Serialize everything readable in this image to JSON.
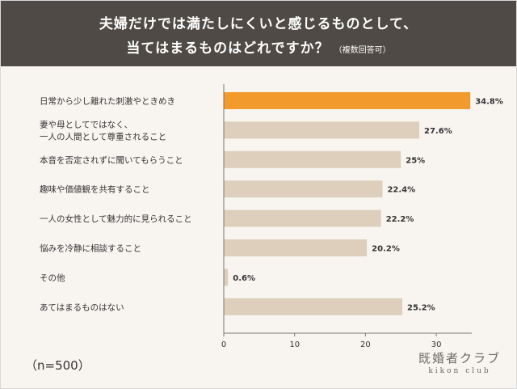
{
  "header": {
    "title_line1": "夫婦だけでは満たしにくいと感じるものとして、",
    "title_line2": "当てはまるものはどれですか？",
    "title_note": "（複数回答可）"
  },
  "sample": "（n=500）",
  "brand": {
    "jp": "既婚者クラブ",
    "en": "kikon club"
  },
  "colors": {
    "highlight": "#f39a2c",
    "bar": "#ddcfbb",
    "axis": "#777777",
    "text": "#333333"
  },
  "chart_data": {
    "type": "bar",
    "orientation": "horizontal",
    "categories": [
      [
        "日常から少し離れた刺激やときめき"
      ],
      [
        "妻や母としてではなく、",
        "一人の人間として尊重されること"
      ],
      [
        "本音を否定されずに聞いてもらうこと"
      ],
      [
        "趣味や価値観を共有すること"
      ],
      [
        "一人の女性として魅力的に見られること"
      ],
      [
        "悩みを冷静に相談すること"
      ],
      [
        "その他"
      ],
      [
        "あてはまるものはない"
      ]
    ],
    "values": [
      34.8,
      27.6,
      25,
      22.4,
      22.2,
      20.2,
      0.6,
      25.2
    ],
    "value_labels": [
      "34.8%",
      "27.6%",
      "25%",
      "22.4%",
      "22.2%",
      "20.2%",
      "0.6%",
      "25.2%"
    ],
    "highlight_index": 0,
    "xlim": [
      0,
      35
    ],
    "xticks": [
      0,
      10,
      20,
      30
    ],
    "grid": false
  }
}
